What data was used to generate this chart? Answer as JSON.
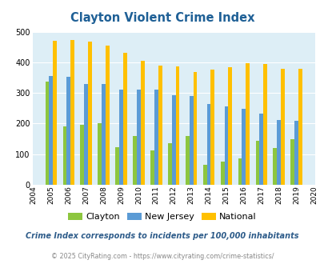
{
  "title": "Clayton Violent Crime Index",
  "years": [
    2004,
    2005,
    2006,
    2007,
    2008,
    2009,
    2010,
    2011,
    2012,
    2013,
    2014,
    2015,
    2016,
    2017,
    2018,
    2019,
    2020
  ],
  "clayton": [
    null,
    337,
    190,
    195,
    202,
    122,
    160,
    113,
    135,
    160,
    65,
    75,
    87,
    143,
    120,
    150,
    null
  ],
  "new_jersey": [
    null,
    355,
    352,
    330,
    330,
    312,
    310,
    310,
    292,
    289,
    263,
    256,
    248,
    232,
    211,
    208,
    null
  ],
  "national": [
    null,
    469,
    474,
    467,
    455,
    432,
    405,
    388,
    387,
    368,
    377,
    383,
    397,
    394,
    380,
    379,
    null
  ],
  "clayton_color": "#8dc63f",
  "nj_color": "#5b9bd5",
  "national_color": "#ffc000",
  "bg_color": "#ddeef6",
  "ylim": [
    0,
    500
  ],
  "yticks": [
    0,
    100,
    200,
    300,
    400,
    500
  ],
  "subtitle": "Crime Index corresponds to incidents per 100,000 inhabitants",
  "footer": "© 2025 CityRating.com - https://www.cityrating.com/crime-statistics/",
  "title_color": "#1f6096",
  "subtitle_color": "#2e5c8a",
  "footer_color": "#888888",
  "legend_labels": [
    "Clayton",
    "New Jersey",
    "National"
  ]
}
